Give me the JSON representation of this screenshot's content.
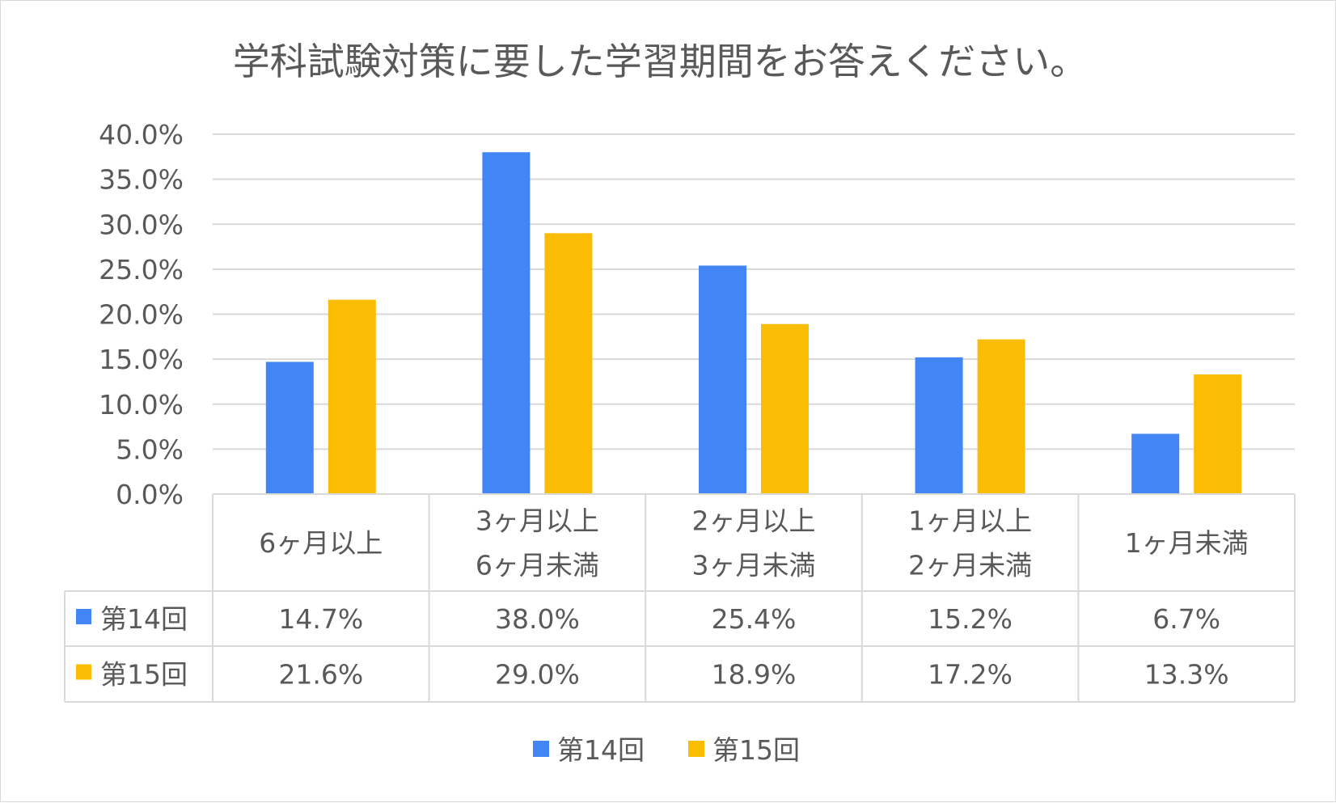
{
  "chart_data": {
    "type": "bar",
    "title": "学科試験対策に要した学習期間をお答えください。",
    "categories": [
      [
        "6ヶ月以上"
      ],
      [
        "3ヶ月以上",
        "6ヶ月未満"
      ],
      [
        "2ヶ月以上",
        "3ヶ月未満"
      ],
      [
        "1ヶ月以上",
        "2ヶ月未満"
      ],
      [
        "1ヶ月未満"
      ]
    ],
    "series": [
      {
        "name": "第14回",
        "color": "#4285f4",
        "values": [
          14.7,
          38.0,
          25.4,
          15.2,
          6.7
        ],
        "labels": [
          "14.7%",
          "38.0%",
          "25.4%",
          "15.2%",
          "6.7%"
        ]
      },
      {
        "name": "第15回",
        "color": "#fbbc04",
        "values": [
          21.6,
          29.0,
          18.9,
          17.2,
          13.3
        ],
        "labels": [
          "21.6%",
          "29.0%",
          "18.9%",
          "17.2%",
          "13.3%"
        ]
      }
    ],
    "ylim": [
      0,
      40
    ],
    "yticks": [
      0,
      5,
      10,
      15,
      20,
      25,
      30,
      35,
      40
    ],
    "ytick_labels": [
      "0.0%",
      "5.0%",
      "10.0%",
      "15.0%",
      "20.0%",
      "25.0%",
      "30.0%",
      "35.0%",
      "40.0%"
    ],
    "grid": true,
    "legend_position": "bottom",
    "data_table": true
  }
}
